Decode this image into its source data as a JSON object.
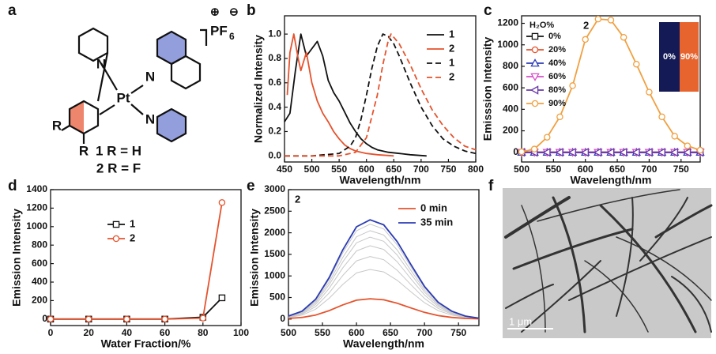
{
  "panel_labels": [
    "a",
    "b",
    "c",
    "d",
    "e",
    "f"
  ],
  "structure": {
    "atoms": [
      "N",
      "Pt",
      "N",
      "N",
      "R",
      "R"
    ],
    "counterion": "PF",
    "counterion_subscript": "6",
    "charges": [
      "⊕",
      "⊖"
    ],
    "captions": [
      "1 R = H",
      "2 R = F"
    ]
  },
  "image": {
    "scale_bar": "1 μm"
  },
  "chart_data": [
    {
      "type": "line",
      "xlabel": "Wavelength/nm",
      "ylabel": "Normalized  Intensity",
      "xlim": [
        450,
        800
      ],
      "xticks": [
        450,
        500,
        550,
        600,
        650,
        700,
        750,
        800
      ],
      "ylim": [
        -0.05,
        1.15
      ],
      "yticks": [
        {
          "value": 0,
          "label": "0.0"
        },
        0.2,
        0.4,
        0.6,
        0.8,
        {
          "value": 1,
          "label": "1.0"
        }
      ],
      "legend": "upper right",
      "series": [
        {
          "name": "1",
          "color": "#111111",
          "dashed": false,
          "x": [
            450,
            460,
            470,
            480,
            490,
            500,
            510,
            520,
            530,
            540,
            550,
            560,
            570,
            580,
            590,
            600,
            610,
            620,
            640,
            660,
            680,
            710
          ],
          "values": [
            0.28,
            0.35,
            0.7,
            1.0,
            0.82,
            0.88,
            0.94,
            0.82,
            0.62,
            0.52,
            0.45,
            0.36,
            0.27,
            0.2,
            0.14,
            0.1,
            0.07,
            0.05,
            0.03,
            0.02,
            0.01,
            0
          ]
        },
        {
          "name": "2",
          "color": "#e5532d",
          "dashed": false,
          "x": [
            455,
            460,
            467,
            475,
            480,
            490,
            500,
            510,
            520,
            530,
            540,
            550,
            560,
            570,
            580,
            600,
            620,
            650
          ],
          "values": [
            0.5,
            0.85,
            1.0,
            0.8,
            0.7,
            0.85,
            0.6,
            0.45,
            0.35,
            0.28,
            0.2,
            0.14,
            0.09,
            0.06,
            0.04,
            0.02,
            0.01,
            0
          ]
        },
        {
          "name": "1",
          "color": "#111111",
          "dashed": true,
          "x": [
            450,
            500,
            550,
            570,
            580,
            590,
            600,
            610,
            620,
            630,
            640,
            650,
            660,
            680,
            700,
            720,
            740,
            760,
            780,
            800
          ],
          "values": [
            0,
            0,
            0.02,
            0.08,
            0.15,
            0.3,
            0.5,
            0.72,
            0.9,
            1.0,
            0.98,
            0.92,
            0.82,
            0.6,
            0.4,
            0.25,
            0.14,
            0.08,
            0.04,
            0.02
          ]
        },
        {
          "name": "2",
          "color": "#e5532d",
          "dashed": true,
          "x": [
            450,
            550,
            580,
            600,
            620,
            630,
            640,
            645,
            660,
            680,
            700,
            720,
            740,
            760,
            780,
            800
          ],
          "values": [
            0,
            0,
            0.03,
            0.15,
            0.5,
            0.75,
            0.95,
            1.0,
            0.92,
            0.75,
            0.55,
            0.38,
            0.25,
            0.15,
            0.08,
            0.05
          ]
        }
      ]
    },
    {
      "type": "line",
      "xlabel": "Wavelength/nm",
      "ylabel": "Emisssion Intensity",
      "annotation": "2",
      "legend_title": "H₂O%",
      "inset_labels": [
        "0%",
        "90%"
      ],
      "xlim": [
        500,
        780
      ],
      "xticks": [
        500,
        550,
        600,
        650,
        700,
        750
      ],
      "ylim": [
        -90,
        1270
      ],
      "yticks": [
        0,
        200,
        400,
        600,
        800,
        1000,
        1200
      ],
      "legend": "upper left",
      "x": [
        500,
        520,
        540,
        560,
        580,
        600,
        620,
        640,
        660,
        680,
        700,
        720,
        740,
        760,
        780
      ],
      "series": [
        {
          "name": "0%",
          "color": "#111111",
          "marker": "square",
          "values": [
            0,
            0,
            0,
            0,
            0,
            0,
            0,
            0,
            0,
            0,
            0,
            0,
            0,
            0,
            0
          ]
        },
        {
          "name": "20%",
          "color": "#e5532d",
          "marker": "circle",
          "values": [
            0,
            0,
            0,
            0,
            0,
            0,
            0,
            0,
            0,
            0,
            0,
            0,
            0,
            0,
            0
          ]
        },
        {
          "name": "40%",
          "color": "#2b3bb5",
          "marker": "triangle",
          "values": [
            0,
            0,
            0,
            0,
            0,
            0,
            0,
            0,
            0,
            0,
            0,
            0,
            0,
            0,
            0
          ]
        },
        {
          "name": "60%",
          "color": "#d64fc8",
          "marker": "triangle-down",
          "values": [
            0,
            0,
            0,
            0,
            0,
            0,
            0,
            0,
            0,
            0,
            0,
            0,
            0,
            0,
            0
          ]
        },
        {
          "name": "80%",
          "color": "#6a3aa8",
          "marker": "triangle-left",
          "values": [
            0,
            0,
            0,
            0,
            0,
            0,
            0,
            0,
            0,
            0,
            0,
            0,
            0,
            0,
            0
          ]
        },
        {
          "name": "90%",
          "color": "#f0a040",
          "marker": "circle",
          "values": [
            5,
            30,
            140,
            330,
            620,
            1050,
            1240,
            1230,
            1070,
            820,
            560,
            330,
            150,
            60,
            20
          ]
        }
      ]
    },
    {
      "type": "line",
      "xlabel": "Water Fraction/%",
      "ylabel": "Emission Intensity",
      "xlim": [
        0,
        100
      ],
      "xticks": [
        0,
        20,
        40,
        60,
        80,
        100
      ],
      "ylim": [
        -70,
        1400
      ],
      "yticks": [
        0,
        200,
        400,
        600,
        800,
        1000,
        1200,
        1400
      ],
      "legend": "center",
      "x": [
        0,
        20,
        40,
        60,
        80,
        90
      ],
      "series": [
        {
          "name": "1",
          "color": "#111111",
          "marker": "square",
          "values": [
            0,
            0,
            0,
            0,
            20,
            230
          ]
        },
        {
          "name": "2",
          "color": "#e5532d",
          "marker": "circle",
          "values": [
            0,
            0,
            0,
            0,
            10,
            1260
          ]
        }
      ]
    },
    {
      "type": "line",
      "xlabel": "Wavelength/nm",
      "ylabel": "Emission Intensity",
      "annotation": "2",
      "xlim": [
        500,
        780
      ],
      "xticks": [
        500,
        550,
        600,
        650,
        700,
        750
      ],
      "ylim": [
        -150,
        3000
      ],
      "yticks": [
        0,
        500,
        1000,
        1500,
        2000,
        2500,
        3000
      ],
      "legend": "upper right",
      "x": [
        500,
        520,
        540,
        560,
        580,
        600,
        620,
        640,
        660,
        680,
        700,
        720,
        740,
        760,
        780
      ],
      "series": [
        {
          "color": "#c8c8c8",
          "values": [
            35,
            92,
            230,
            483,
            805,
            1070,
            1150,
            1093,
            897,
            633,
            380,
            196,
            92,
            35,
            12
          ]
        },
        {
          "color": "#c8c8c8",
          "values": [
            44,
            116,
            290,
            609,
            1015,
            1349,
            1450,
            1378,
            1131,
            798,
            479,
            247,
            116,
            44,
            15
          ]
        },
        {
          "color": "#c8c8c8",
          "values": [
            51,
            136,
            340,
            714,
            1190,
            1581,
            1700,
            1615,
            1326,
            935,
            561,
            289,
            136,
            51,
            17
          ]
        },
        {
          "color": "#c8c8c8",
          "values": [
            57,
            152,
            380,
            798,
            1330,
            1767,
            1900,
            1805,
            1482,
            1045,
            627,
            323,
            152,
            57,
            19
          ]
        },
        {
          "color": "#c8c8c8",
          "values": [
            62,
            164,
            410,
            861,
            1435,
            1907,
            2050,
            1948,
            1599,
            1128,
            677,
            349,
            164,
            62,
            21
          ]
        },
        {
          "color": "#c8c8c8",
          "values": [
            66,
            176,
            440,
            924,
            1540,
            2046,
            2200,
            2090,
            1716,
            1210,
            726,
            374,
            176,
            66,
            22
          ]
        },
        {
          "name": "0 min",
          "color": "#e5532d",
          "values": [
            14,
            38,
            94,
            197,
            329,
            437,
            470,
            447,
            367,
            259,
            155,
            80,
            38,
            14,
            5
          ]
        },
        {
          "name": "35 min",
          "color": "#2b3bb5",
          "values": [
            69,
            184,
            460,
            966,
            1610,
            2139,
            2300,
            2185,
            1794,
            1265,
            759,
            391,
            184,
            69,
            23
          ]
        }
      ]
    }
  ]
}
